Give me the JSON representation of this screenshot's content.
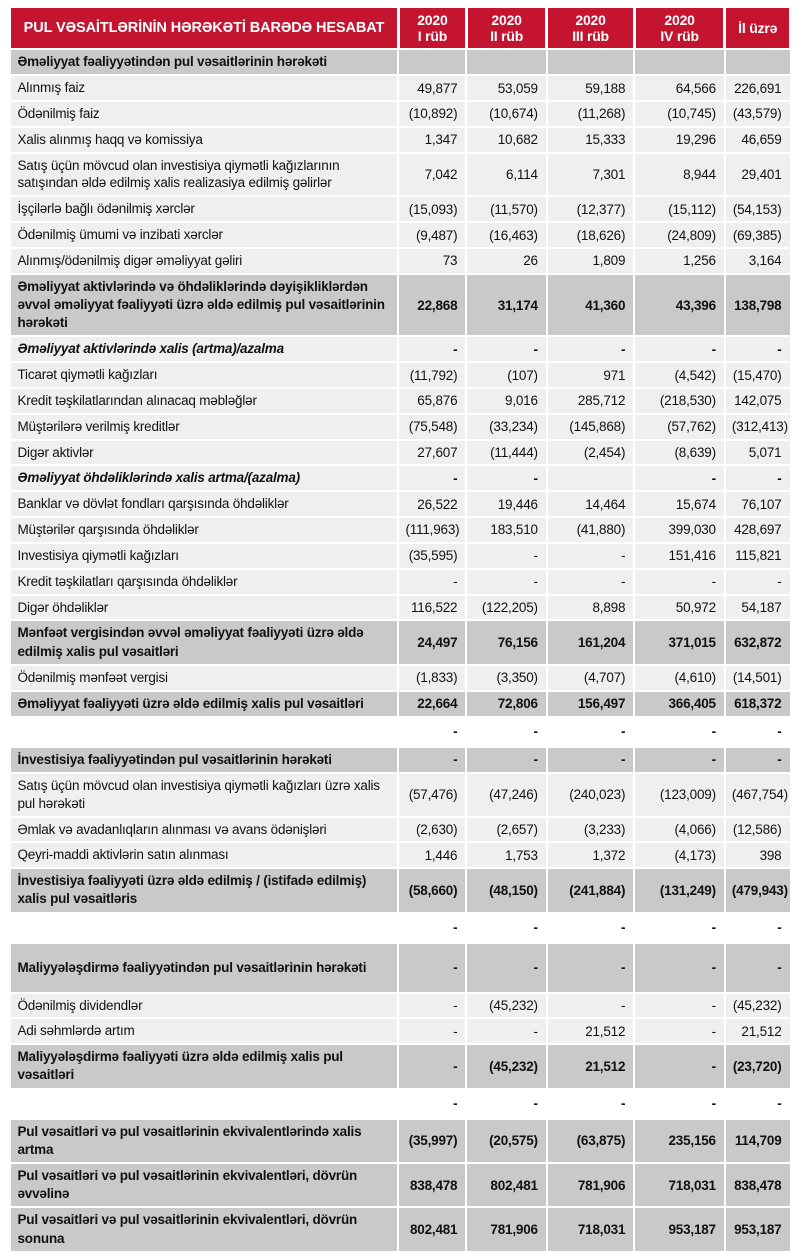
{
  "colors": {
    "header_red": "#C4142F",
    "band_gray": "#C9C9C9",
    "row_gray": "#EFEFEF",
    "separator_white": "#FFFFFF",
    "header_text": "#FFFFFF",
    "body_text": "#111111"
  },
  "header": {
    "title": "PUL VƏSAİTLƏRİNİN HƏRƏKƏTİ BARƏDƏ HESABAT",
    "columns": [
      {
        "year": "2020",
        "period": "I rüb"
      },
      {
        "year": "2020",
        "period": "II rüb"
      },
      {
        "year": "2020",
        "period": "III rüb"
      },
      {
        "year": "2020",
        "period": "IV rüb"
      },
      {
        "year": "",
        "period": "İl üzrə"
      }
    ]
  },
  "rows": [
    {
      "type": "section",
      "label": "Əməliyyat fəaliyyətindən pul vəsaitlərinin hərəkəti",
      "values": [
        "",
        "",
        "",
        "",
        ""
      ]
    },
    {
      "type": "data",
      "label": "Alınmış faiz",
      "values": [
        "49,877",
        "53,059",
        "59,188",
        "64,566",
        "226,691"
      ]
    },
    {
      "type": "data",
      "label": "Ödənilmiş faiz",
      "values": [
        "(10,892)",
        "(10,674)",
        "(11,268)",
        "(10,745)",
        "(43,579)"
      ]
    },
    {
      "type": "data",
      "label": "Xalis alınmış haqq və komissiya",
      "values": [
        "1,347",
        "10,682",
        "15,333",
        "19,296",
        "46,659"
      ]
    },
    {
      "type": "data",
      "label": "Satış üçün mövcud olan investisiya qiymətli kağızlarının satışından əldə edilmiş xalis realizasiya edilmiş gəlirlər",
      "values": [
        "7,042",
        "6,114",
        "7,301",
        "8,944",
        "29,401"
      ]
    },
    {
      "type": "data",
      "label": "İşçilərlə bağlı ödənilmiş xərclər",
      "values": [
        "(15,093)",
        "(11,570)",
        "(12,377)",
        "(15,112)",
        "(54,153)"
      ]
    },
    {
      "type": "data",
      "label": "Ödənilmiş ümumi və inzibati xərclər",
      "values": [
        "(9,487)",
        "(16,463)",
        "(18,626)",
        "(24,809)",
        "(69,385)"
      ]
    },
    {
      "type": "data",
      "label": "Alınmış/ödənilmiş digər əməliyyat gəliri",
      "values": [
        "73",
        "26",
        "1,809",
        "1,256",
        "3,164"
      ]
    },
    {
      "type": "total",
      "label": "Əməliyyat aktivlərində və öhdəliklərində dəyişikliklərdən əvvəl əməliyyat fəaliyyəti üzrə əldə edilmiş pul vəsaitlərinin hərəkəti",
      "values": [
        "22,868",
        "31,174",
        "41,360",
        "43,396",
        "138,798"
      ]
    },
    {
      "type": "italic",
      "label": "Əməliyyat aktivlərində xalis (artma)/azalma",
      "values": [
        "-",
        "-",
        "-",
        "-",
        "-"
      ]
    },
    {
      "type": "data",
      "label": "Ticarət qiymətli kağızları",
      "values": [
        "(11,792)",
        "(107)",
        "971",
        "(4,542)",
        "(15,470)"
      ]
    },
    {
      "type": "data",
      "label": "Kredit təşkilatlarından alınacaq məbləğlər",
      "values": [
        "65,876",
        "9,016",
        "285,712",
        "(218,530)",
        "142,075"
      ]
    },
    {
      "type": "data",
      "label": "Müştərilərə verilmiş kreditlər",
      "values": [
        "(75,548)",
        "(33,234)",
        "(145,868)",
        "(57,762)",
        "(312,413)"
      ]
    },
    {
      "type": "data",
      "label": "Digər aktivlər",
      "values": [
        "27,607",
        "(11,444)",
        "(2,454)",
        "(8,639)",
        "5,071"
      ]
    },
    {
      "type": "italic",
      "label": "Əməliyyat öhdəliklərində xalis artma/(azalma)",
      "values": [
        "-",
        "-",
        "",
        "-",
        "-"
      ]
    },
    {
      "type": "data",
      "label": "Banklar və dövlət fondları qarşısında öhdəliklər",
      "values": [
        "26,522",
        "19,446",
        "14,464",
        "15,674",
        "76,107"
      ]
    },
    {
      "type": "data",
      "label": "Müştərilər qarşısında öhdəliklər",
      "values": [
        "(111,963)",
        "183,510",
        "(41,880)",
        "399,030",
        "428,697"
      ]
    },
    {
      "type": "data",
      "label": "Investisiya qiymətli kağızları",
      "values": [
        "(35,595)",
        "-",
        "-",
        "151,416",
        "115,821"
      ]
    },
    {
      "type": "data",
      "label": "Kredit təşkilatları qarşısında öhdəliklər",
      "values": [
        "-",
        "-",
        "-",
        "-",
        "-"
      ]
    },
    {
      "type": "data",
      "label": "Digər öhdəliklər",
      "values": [
        "116,522",
        "(122,205)",
        "8,898",
        "50,972",
        "54,187"
      ]
    },
    {
      "type": "total",
      "label": "Mənfəət vergisindən əvvəl əməliyyat fəaliyyəti üzrə əldə edilmiş xalis pul vəsaitləri",
      "values": [
        "24,497",
        "76,156",
        "161,204",
        "371,015",
        "632,872"
      ]
    },
    {
      "type": "data",
      "label": "Ödənilmiş mənfəət vergisi",
      "values": [
        "(1,833)",
        "(3,350)",
        "(4,707)",
        "(4,610)",
        "(14,501)"
      ]
    },
    {
      "type": "total",
      "label": "Əməliyyat fəaliyyəti üzrə əldə edilmiş xalis pul vəsaitləri",
      "values": [
        "22,664",
        "72,806",
        "156,497",
        "366,405",
        "618,372"
      ]
    },
    {
      "type": "spacer",
      "label": "",
      "values": [
        "-",
        "-",
        "-",
        "-",
        "-"
      ]
    },
    {
      "type": "section",
      "label": "İnvestisiya fəaliyyətindən pul vəsaitlərinin hərəkəti",
      "values": [
        "-",
        "-",
        "-",
        "-",
        "-"
      ]
    },
    {
      "type": "data",
      "label": "Satış üçün mövcud olan investisiya qiymətli kağızları üzrə xalis pul hərəkəti",
      "values": [
        "(57,476)",
        "(47,246)",
        "(240,023)",
        "(123,009)",
        "(467,754)"
      ]
    },
    {
      "type": "data",
      "label": "Əmlak və avadanlıqların alınması və avans ödənişləri",
      "values": [
        "(2,630)",
        "(2,657)",
        "(3,233)",
        "(4,066)",
        "(12,586)"
      ]
    },
    {
      "type": "data",
      "label": "Qeyri-maddi aktivlərin satın alınması",
      "values": [
        "1,446",
        "1,753",
        "1,372",
        "(4,173)",
        "398"
      ]
    },
    {
      "type": "total",
      "label": "İnvestisiya fəaliyyəti üzrə əldə edilmiş / (istifadə edilmiş) xalis pul vəsaitləris",
      "values": [
        "(58,660)",
        "(48,150)",
        "(241,884)",
        "(131,249)",
        "(479,943)"
      ]
    },
    {
      "type": "spacer",
      "label": "",
      "values": [
        "-",
        "-",
        "-",
        "-",
        "-"
      ]
    },
    {
      "type": "section-tall",
      "label": "Maliyyələşdirmə fəaliyyətindən pul vəsaitlərinin hərəkəti",
      "values": [
        "-",
        "-",
        "-",
        "-",
        "-"
      ]
    },
    {
      "type": "data",
      "label": "Ödənilmiş dividendlər",
      "values": [
        "-",
        "(45,232)",
        "-",
        "-",
        "(45,232)"
      ]
    },
    {
      "type": "data",
      "label": "Adi səhmlərdə artım",
      "values": [
        "-",
        "-",
        "21,512",
        "-",
        "21,512"
      ]
    },
    {
      "type": "total",
      "label": "Maliyyələşdirmə fəaliyyəti üzrə əldə edilmiş xalis pul vəsaitləri",
      "values": [
        "-",
        "(45,232)",
        "21,512",
        "-",
        "(23,720)"
      ]
    },
    {
      "type": "spacer",
      "label": "",
      "values": [
        "-",
        "-",
        "-",
        "-",
        "-"
      ]
    },
    {
      "type": "total",
      "label": "Pul vəsaitləri və pul vəsaitlərinin ekvivalentlərində xalis artma",
      "values": [
        "(35,997)",
        "(20,575)",
        "(63,875)",
        "235,156",
        "114,709"
      ]
    },
    {
      "type": "total",
      "label": "Pul vəsaitləri və pul vəsaitlərinin ekvivalentləri, dövrün əvvəlinə",
      "values": [
        "838,478",
        "802,481",
        "781,906",
        "718,031",
        "838,478"
      ]
    },
    {
      "type": "total",
      "label": "Pul vəsaitləri və pul vəsaitlərinin ekvivalentləri, dövrün sonuna",
      "values": [
        "802,481",
        "781,906",
        "718,031",
        "953,187",
        "953,187"
      ]
    }
  ]
}
